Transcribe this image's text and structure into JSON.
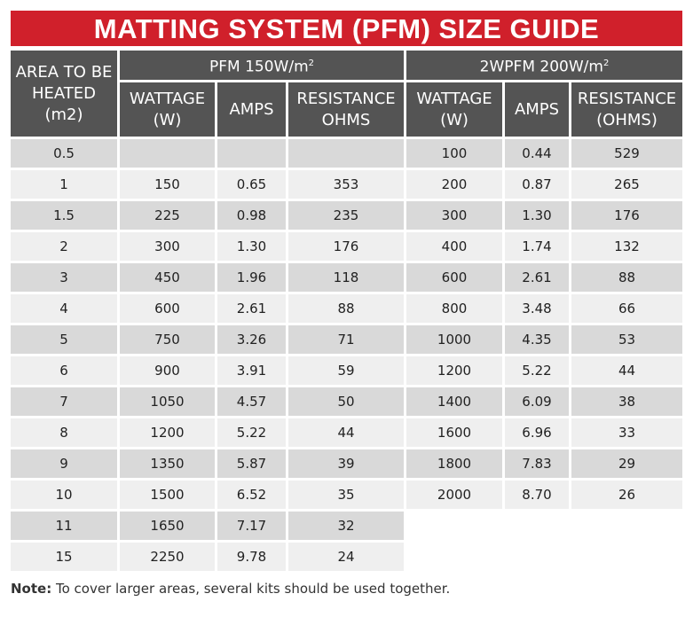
{
  "title": "MATTING SYSTEM (PFM) SIZE GUIDE",
  "header": {
    "area": "AREA TO BE HEATED (m2)",
    "group1": "PFM 150W/m",
    "group2": "2WPFM 200W/m",
    "group_sup": "2",
    "wattage": "WATTAGE (W)",
    "amps": "AMPS",
    "resistance1": "RESISTANCE OHMS",
    "resistance2": "RESISTANCE (OHMS)"
  },
  "rows": [
    [
      "0.5",
      "",
      "",
      "",
      "100",
      "0.44",
      "529"
    ],
    [
      "1",
      "150",
      "0.65",
      "353",
      "200",
      "0.87",
      "265"
    ],
    [
      "1.5",
      "225",
      "0.98",
      "235",
      "300",
      "1.30",
      "176"
    ],
    [
      "2",
      "300",
      "1.30",
      "176",
      "400",
      "1.74",
      "132"
    ],
    [
      "3",
      "450",
      "1.96",
      "118",
      "600",
      "2.61",
      "88"
    ],
    [
      "4",
      "600",
      "2.61",
      "88",
      "800",
      "3.48",
      "66"
    ],
    [
      "5",
      "750",
      "3.26",
      "71",
      "1000",
      "4.35",
      "53"
    ],
    [
      "6",
      "900",
      "3.91",
      "59",
      "1200",
      "5.22",
      "44"
    ],
    [
      "7",
      "1050",
      "4.57",
      "50",
      "1400",
      "6.09",
      "38"
    ],
    [
      "8",
      "1200",
      "5.22",
      "44",
      "1600",
      "6.96",
      "33"
    ],
    [
      "9",
      "1350",
      "5.87",
      "39",
      "1800",
      "7.83",
      "29"
    ],
    [
      "10",
      "1500",
      "6.52",
      "35",
      "2000",
      "8.70",
      "26"
    ],
    [
      "11",
      "1650",
      "7.17",
      "32",
      null,
      null,
      null
    ],
    [
      "15",
      "2250",
      "9.78",
      "24",
      null,
      null,
      null
    ]
  ],
  "note": {
    "label": "Note:",
    "text": " To cover larger areas, several kits should be used together."
  },
  "colors": {
    "title_bg": "#d0202b",
    "header_bg": "#545454",
    "row_dark": "#d9d9d9",
    "row_light": "#efefef"
  }
}
